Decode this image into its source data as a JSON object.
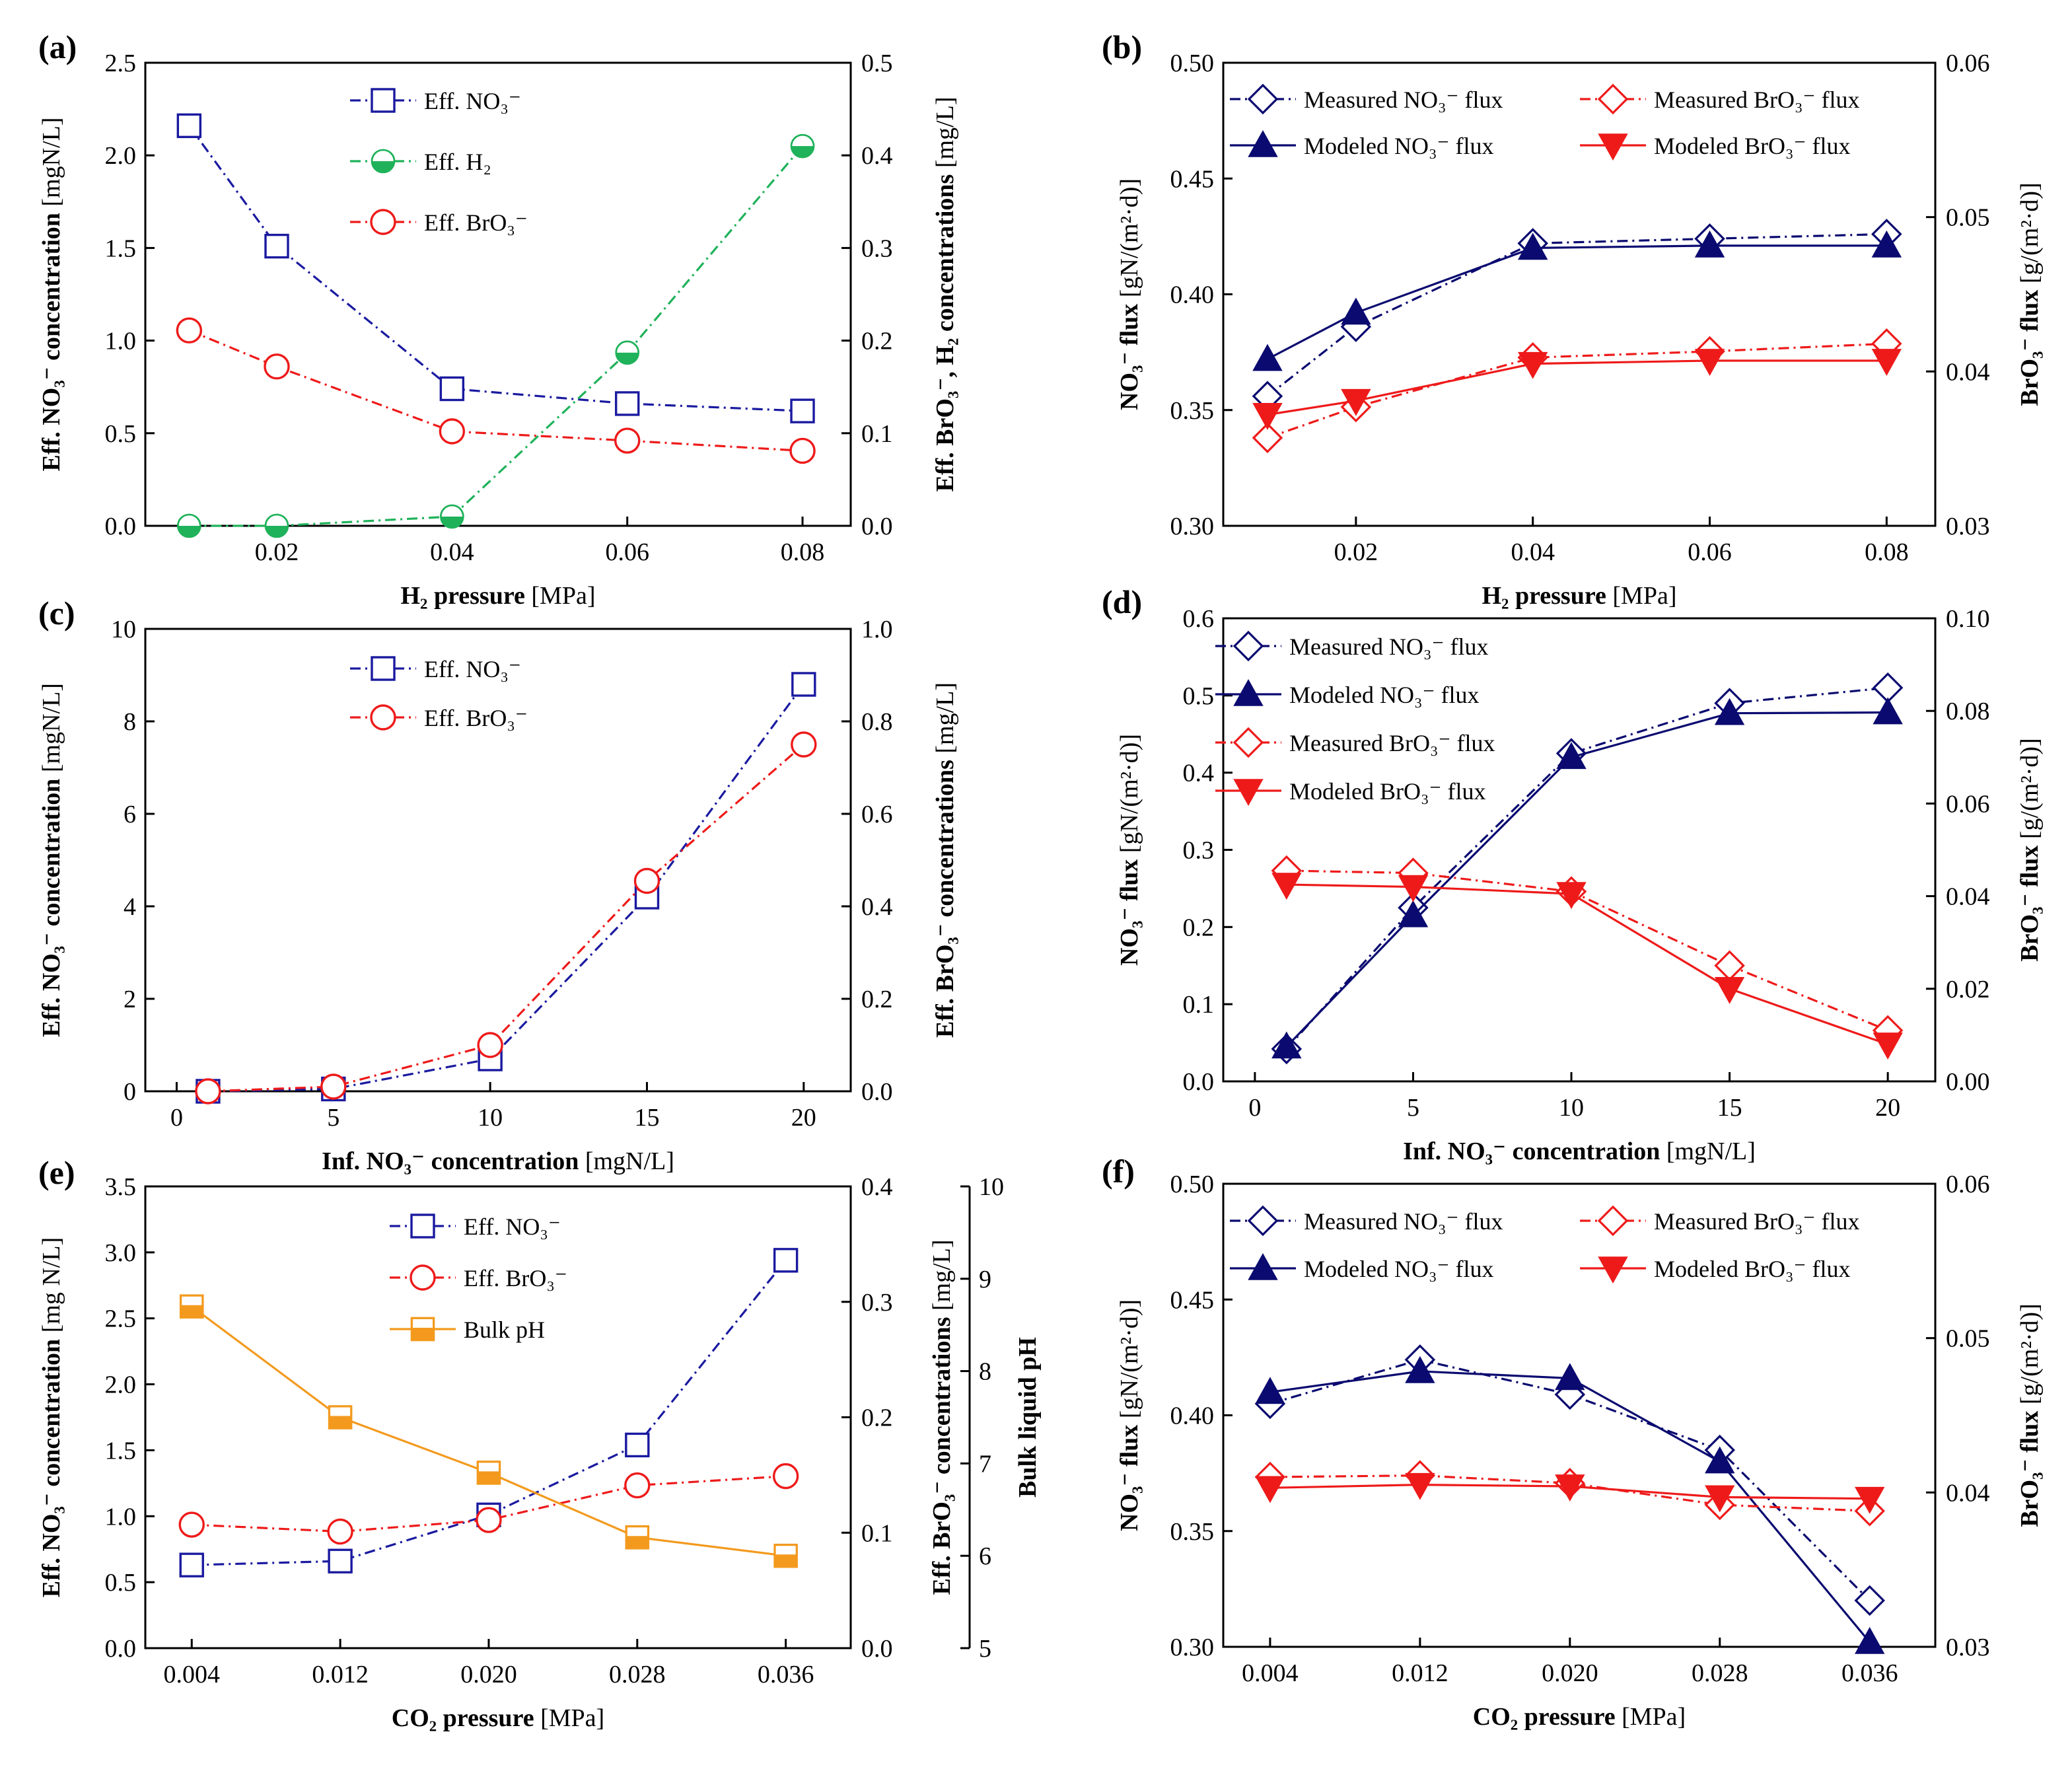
{
  "figure": {
    "panel_letters": [
      "(a)",
      "(b)",
      "(c)",
      "(d)",
      "(e)",
      "(f)"
    ]
  },
  "colors": {
    "blue": "#1a1aa0",
    "navy": "#0a0a70",
    "green": "#1fb25a",
    "red": "#ee1a1a",
    "orange": "#f39a1e"
  },
  "chart_data": [
    {
      "panel": "(a)",
      "type": "line",
      "xlabel": {
        "bold": "H₂ pressure",
        "normal": " [MPa]"
      },
      "ylabel_left": {
        "bold": "Eff. NO₃⁻ concentration",
        "normal": " [mgN/L]"
      },
      "ylabel_right": {
        "bold": "Eff. BrO₃⁻, H₂ concentrations",
        "normal": " [mg/L]"
      },
      "x": [
        0.01,
        0.02,
        0.04,
        0.06,
        0.08
      ],
      "xlim": [
        0.005,
        0.0855
      ],
      "xticks": [
        0.02,
        0.04,
        0.06,
        0.08
      ],
      "xtick_labels": [
        "0.02",
        "0.04",
        "0.06",
        "0.08"
      ],
      "ylim_left": [
        0,
        2.5
      ],
      "yticks_left": [
        0,
        0.5,
        1.0,
        1.5,
        2.0,
        2.5
      ],
      "ytick_labels_left": [
        "0.0",
        "0.5",
        "1.0",
        "1.5",
        "2.0",
        "2.5"
      ],
      "ylim_right": [
        0,
        0.5
      ],
      "yticks_right": [
        0,
        0.1,
        0.2,
        0.3,
        0.4,
        0.5
      ],
      "ytick_labels_right": [
        "0.0",
        "0.1",
        "0.2",
        "0.3",
        "0.4",
        "0.5"
      ],
      "series": [
        {
          "name": "Eff. NO₃⁻",
          "axis": "left",
          "color": "blue",
          "marker": "square",
          "dash": "dashdot",
          "values": [
            2.16,
            1.51,
            0.74,
            0.66,
            0.62
          ]
        },
        {
          "name": "Eff. H₂",
          "axis": "right",
          "color": "green",
          "marker": "halfcircle",
          "dash": "dashdot",
          "values": [
            0.0,
            0.0,
            0.01,
            0.187,
            0.41
          ]
        },
        {
          "name": "Eff. BrO₃⁻",
          "axis": "right",
          "color": "red",
          "marker": "circle",
          "dash": "dashdot",
          "values": [
            0.211,
            0.172,
            0.102,
            0.092,
            0.081
          ]
        }
      ],
      "legend_position": "top-center"
    },
    {
      "panel": "(b)",
      "type": "line",
      "xlabel": {
        "bold": "H₂ pressure",
        "normal": " [MPa]"
      },
      "ylabel_left": {
        "bold": "NO₃⁻ flux",
        "normal": " [gN/(m²·d)]"
      },
      "ylabel_right": {
        "bold": "BrO₃⁻ flux",
        "normal": " [g/(m²·d)]"
      },
      "x": [
        0.01,
        0.02,
        0.04,
        0.06,
        0.08
      ],
      "xlim": [
        0.005,
        0.0855
      ],
      "xticks": [
        0.02,
        0.04,
        0.06,
        0.08
      ],
      "xtick_labels": [
        "0.02",
        "0.04",
        "0.06",
        "0.08"
      ],
      "ylim_left": [
        0.3,
        0.5
      ],
      "yticks_left": [
        0.3,
        0.35,
        0.4,
        0.45,
        0.5
      ],
      "ytick_labels_left": [
        "0.30",
        "0.35",
        "0.40",
        "0.45",
        "0.50"
      ],
      "ylim_right": [
        0.03,
        0.06
      ],
      "yticks_right": [
        0.03,
        0.04,
        0.05,
        0.06
      ],
      "ytick_labels_right": [
        "0.03",
        "0.04",
        "0.05",
        "0.06"
      ],
      "series": [
        {
          "name": "Measured NO₃⁻ flux",
          "axis": "left",
          "color": "navy",
          "marker": "diamond",
          "dash": "dashdot",
          "values": [
            0.356,
            0.386,
            0.422,
            0.424,
            0.426
          ]
        },
        {
          "name": "Modeled NO₃⁻ flux",
          "axis": "left",
          "color": "navy",
          "marker": "triangle-up",
          "dash": "solid",
          "values": [
            0.372,
            0.392,
            0.42,
            0.421,
            0.421
          ]
        },
        {
          "name": "Measured BrO₃⁻ flux",
          "axis": "right",
          "color": "red",
          "marker": "diamond",
          "dash": "dashdot",
          "values": [
            0.0357,
            0.0377,
            0.0409,
            0.0413,
            0.0418
          ]
        },
        {
          "name": "Modeled BrO₃⁻ flux",
          "axis": "right",
          "color": "red",
          "marker": "triangle-down",
          "dash": "solid",
          "values": [
            0.0372,
            0.0381,
            0.0405,
            0.0407,
            0.0407
          ]
        }
      ],
      "legend_position": "top"
    },
    {
      "panel": "(c)",
      "type": "line",
      "xlabel": {
        "bold": "Inf. NO₃⁻ concentration",
        "normal": " [mgN/L]"
      },
      "ylabel_left": {
        "bold": "Eff. NO₃⁻ concentration",
        "normal": " [mgN/L]"
      },
      "ylabel_right": {
        "bold": "Eff. BrO₃⁻ concentrations",
        "normal": " [mg/L]"
      },
      "x": [
        1,
        5,
        10,
        15,
        20
      ],
      "xlim": [
        -1,
        21.5
      ],
      "xticks": [
        0,
        5,
        10,
        15,
        20
      ],
      "xtick_labels": [
        "0",
        "5",
        "10",
        "15",
        "20"
      ],
      "ylim_left": [
        0,
        10
      ],
      "yticks_left": [
        0,
        2,
        4,
        6,
        8,
        10
      ],
      "ytick_labels_left": [
        "0",
        "2",
        "4",
        "6",
        "8",
        "10"
      ],
      "ylim_right": [
        0,
        1.0
      ],
      "yticks_right": [
        0,
        0.2,
        0.4,
        0.6,
        0.8,
        1.0
      ],
      "ytick_labels_right": [
        "0.0",
        "0.2",
        "0.4",
        "0.6",
        "0.8",
        "1.0"
      ],
      "series": [
        {
          "name": "Eff. NO₃⁻",
          "axis": "left",
          "color": "blue",
          "marker": "square",
          "dash": "dashdot",
          "values": [
            0.0,
            0.05,
            0.7,
            4.2,
            8.8
          ]
        },
        {
          "name": "Eff. BrO₃⁻",
          "axis": "right",
          "color": "red",
          "marker": "circle",
          "dash": "dashdot",
          "values": [
            0.0,
            0.01,
            0.1,
            0.455,
            0.75
          ]
        }
      ],
      "legend_position": "top-center"
    },
    {
      "panel": "(d)",
      "type": "line",
      "xlabel": {
        "bold": "Inf. NO₃⁻ concentration",
        "normal": " [mgN/L]"
      },
      "ylabel_left": {
        "bold": "NO₃⁻ flux",
        "normal": " [gN/(m²·d)]"
      },
      "ylabel_right": {
        "bold": "BrO₃⁻ flux",
        "normal": " [g/(m²·d)]"
      },
      "x": [
        1,
        5,
        10,
        15,
        20
      ],
      "xlim": [
        -1,
        21.5
      ],
      "xticks": [
        0,
        5,
        10,
        15,
        20
      ],
      "xtick_labels": [
        "0",
        "5",
        "10",
        "15",
        "20"
      ],
      "ylim_left": [
        0,
        0.6
      ],
      "yticks_left": [
        0,
        0.1,
        0.2,
        0.3,
        0.4,
        0.5,
        0.6
      ],
      "ytick_labels_left": [
        "0.0",
        "0.1",
        "0.2",
        "0.3",
        "0.4",
        "0.5",
        "0.6"
      ],
      "ylim_right": [
        0,
        0.1
      ],
      "yticks_right": [
        0,
        0.02,
        0.04,
        0.06,
        0.08,
        0.1
      ],
      "ytick_labels_right": [
        "0.00",
        "0.02",
        "0.04",
        "0.06",
        "0.08",
        "0.10"
      ],
      "series": [
        {
          "name": "Measured NO₃⁻ flux",
          "axis": "left",
          "color": "navy",
          "marker": "diamond",
          "dash": "dashdot",
          "values": [
            0.042,
            0.225,
            0.425,
            0.49,
            0.51
          ]
        },
        {
          "name": "Modeled NO₃⁻ flux",
          "axis": "left",
          "color": "navy",
          "marker": "triangle-up",
          "dash": "solid",
          "values": [
            0.045,
            0.215,
            0.42,
            0.477,
            0.478
          ]
        },
        {
          "name": "Measured BrO₃⁻ flux",
          "axis": "right",
          "color": "red",
          "marker": "diamond",
          "dash": "dashdot",
          "values": [
            0.0455,
            0.045,
            0.041,
            0.025,
            0.011
          ]
        },
        {
          "name": "Modeled BrO₃⁻ flux",
          "axis": "right",
          "color": "red",
          "marker": "triangle-down",
          "dash": "solid",
          "values": [
            0.0425,
            0.042,
            0.0405,
            0.02,
            0.008
          ]
        }
      ],
      "legend_position": "top-left"
    },
    {
      "panel": "(e)",
      "type": "line",
      "xlabel": {
        "bold": "CO₂ pressure",
        "normal": " [MPa]"
      },
      "ylabel_left": {
        "bold": "Eff. NO₃⁻ concentration",
        "normal": " [mg N/L]"
      },
      "ylabel_right": {
        "bold": "Eff. BrO₃⁻ concentrations",
        "normal": " [mg/L]"
      },
      "ylabel_right2": {
        "bold": "Bulk liquid pH",
        "normal": ""
      },
      "x": [
        0.004,
        0.012,
        0.02,
        0.028,
        0.036
      ],
      "xlim": [
        0.0015,
        0.0395
      ],
      "xticks": [
        0.004,
        0.012,
        0.02,
        0.028,
        0.036
      ],
      "xtick_labels": [
        "0.004",
        "0.012",
        "0.020",
        "0.028",
        "0.036"
      ],
      "ylim_left": [
        0,
        3.5
      ],
      "yticks_left": [
        0,
        0.5,
        1.0,
        1.5,
        2.0,
        2.5,
        3.0,
        3.5
      ],
      "ytick_labels_left": [
        "0.0",
        "0.5",
        "1.0",
        "1.5",
        "2.0",
        "2.5",
        "3.0",
        "3.5"
      ],
      "ylim_right": [
        0,
        0.4
      ],
      "yticks_right": [
        0,
        0.1,
        0.2,
        0.3,
        0.4
      ],
      "ytick_labels_right": [
        "0.0",
        "0.1",
        "0.2",
        "0.3",
        "0.4"
      ],
      "ylim_right2": [
        5,
        10
      ],
      "yticks_right2": [
        5,
        6,
        7,
        8,
        9,
        10
      ],
      "ytick_labels_right2": [
        "5",
        "6",
        "7",
        "8",
        "9",
        "10"
      ],
      "series": [
        {
          "name": "Eff. NO₃⁻",
          "axis": "left",
          "color": "blue",
          "marker": "square",
          "dash": "dashdot",
          "values": [
            0.63,
            0.66,
            1.01,
            1.54,
            2.94
          ]
        },
        {
          "name": "Eff. BrO₃⁻",
          "axis": "right",
          "color": "red",
          "marker": "circle",
          "dash": "dashdot",
          "values": [
            0.107,
            0.101,
            0.111,
            0.141,
            0.149
          ]
        },
        {
          "name": "Bulk pH",
          "axis": "right2",
          "color": "orange",
          "marker": "halfsquare",
          "dash": "solid",
          "values": [
            8.7,
            7.5,
            6.9,
            6.2,
            6.0
          ]
        }
      ],
      "legend_position": "top-center"
    },
    {
      "panel": "(f)",
      "type": "line",
      "xlabel": {
        "bold": "CO₂ pressure",
        "normal": " [MPa]"
      },
      "ylabel_left": {
        "bold": "NO₃⁻ flux",
        "normal": " [gN/(m²·d)]"
      },
      "ylabel_right": {
        "bold": "BrO₃⁻ flux",
        "normal": " [g/(m²·d)]"
      },
      "x": [
        0.004,
        0.012,
        0.02,
        0.028,
        0.036
      ],
      "xlim": [
        0.0015,
        0.0395
      ],
      "xticks": [
        0.004,
        0.012,
        0.02,
        0.028,
        0.036
      ],
      "xtick_labels": [
        "0.004",
        "0.012",
        "0.020",
        "0.028",
        "0.036"
      ],
      "ylim_left": [
        0.3,
        0.5
      ],
      "yticks_left": [
        0.3,
        0.35,
        0.4,
        0.45,
        0.5
      ],
      "ytick_labels_left": [
        "0.30",
        "0.35",
        "0.40",
        "0.45",
        "0.50"
      ],
      "ylim_right": [
        0.03,
        0.06
      ],
      "yticks_right": [
        0.03,
        0.04,
        0.05,
        0.06
      ],
      "ytick_labels_right": [
        "0.03",
        "0.04",
        "0.05",
        "0.06"
      ],
      "series": [
        {
          "name": "Measured NO₃⁻ flux",
          "axis": "left",
          "color": "navy",
          "marker": "diamond",
          "dash": "dashdot",
          "values": [
            0.405,
            0.424,
            0.409,
            0.385,
            0.32
          ]
        },
        {
          "name": "Modeled NO₃⁻ flux",
          "axis": "left",
          "color": "navy",
          "marker": "triangle-up",
          "dash": "solid",
          "values": [
            0.41,
            0.419,
            0.416,
            0.38,
            0.302
          ]
        },
        {
          "name": "Measured BrO₃⁻ flux",
          "axis": "right",
          "color": "red",
          "marker": "diamond",
          "dash": "dashdot",
          "values": [
            0.041,
            0.0411,
            0.0406,
            0.0392,
            0.0388
          ]
        },
        {
          "name": "Modeled BrO₃⁻ flux",
          "axis": "right",
          "color": "red",
          "marker": "triangle-down",
          "dash": "solid",
          "values": [
            0.0403,
            0.0405,
            0.0404,
            0.0397,
            0.0396
          ]
        }
      ],
      "legend_position": "top"
    }
  ]
}
